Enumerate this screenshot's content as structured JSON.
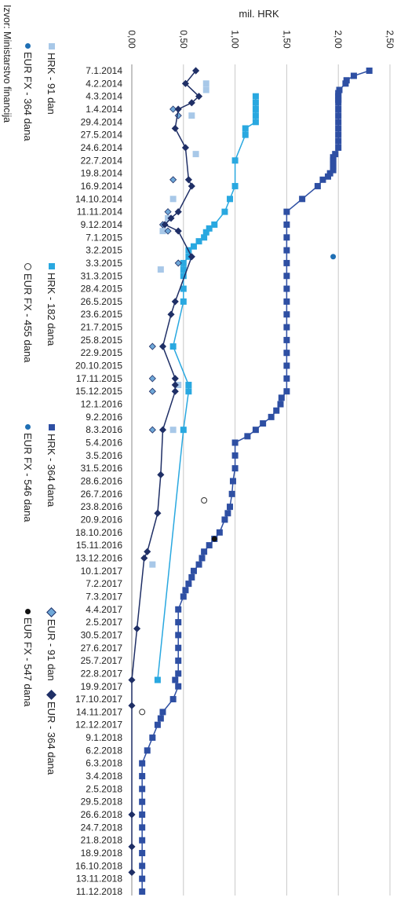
{
  "source": "Izvor: Ministarstvo financija",
  "chart_data": {
    "type": "scatter",
    "orientation": "rotated",
    "title": "",
    "ylabel": "mil. HRK",
    "ylim": [
      0,
      2.5
    ],
    "y_ticks": [
      "0,00",
      "0,50",
      "1,00",
      "1,50",
      "2,00",
      "2,50"
    ],
    "date_labels": [
      "7.1.2014",
      "4.2.2014",
      "4.3.2014",
      "1.4.2014",
      "29.4.2014",
      "27.5.2014",
      "24.6.2014",
      "22.7.2014",
      "19.8.2014",
      "16.9.2014",
      "14.10.2014",
      "11.11.2014",
      "9.12.2014",
      "7.1.2015",
      "3.2.2015",
      "3.3.2015",
      "31.3.2015",
      "28.4.2015",
      "26.5.2015",
      "23.6.2015",
      "21.7.2015",
      "25.8.2015",
      "22.9.2015",
      "20.10.2015",
      "17.11.2015",
      "15.12.2015",
      "12.1.2016",
      "9.2.2016",
      "8.3.2016",
      "5.4.2016",
      "3.5.2016",
      "31.5.2016",
      "28.6.2016",
      "26.7.2016",
      "23.8.2016",
      "20.9.2016",
      "18.10.2016",
      "15.11.2016",
      "13.12.2016",
      "10.1.2017",
      "7.2.2017",
      "7.3.2017",
      "4.4.2017",
      "2.5.2017",
      "30.5.2017",
      "27.6.2017",
      "25.7.2017",
      "22.8.2017",
      "19.9.2017",
      "17.10.2017",
      "14.11.2017",
      "12.12.2017",
      "9.1.2018",
      "6.2.2018",
      "6.3.2018",
      "3.4.2018",
      "2.5.2018",
      "29.5.2018",
      "26.6.2018",
      "24.7.2018",
      "21.8.2018",
      "18.9.2018",
      "16.10.2018",
      "13.11.2018",
      "11.12.2018"
    ],
    "legend": [
      "HRK - 91 dan",
      "EUR FX - 364 dana",
      "HRK - 182 dana",
      "EUR FX - 455 dana",
      "HRK - 364 dana",
      "EUR FX - 546 dana",
      "EUR - 91 dan",
      "EUR FX - 547 dana",
      "EUR - 364 dana"
    ],
    "series": [
      {
        "name": "HRK - 364 dana",
        "color": "#2e4fa3",
        "marker": "square",
        "line": true,
        "x": [
          0,
          0.4,
          0.75,
          1,
          1.5,
          1.75,
          2,
          2.25,
          2.5,
          3,
          3.5,
          4,
          4.5,
          5,
          5.5,
          6,
          6.5,
          6.75,
          7,
          7.25,
          7.5,
          7.75,
          8,
          8.25,
          8.5,
          9,
          10,
          11,
          12,
          13,
          14,
          15,
          16,
          17,
          18,
          19,
          20,
          21,
          22,
          23,
          24,
          25,
          25.5,
          26,
          26.5,
          27,
          27.5,
          28,
          28.5,
          29,
          30,
          31,
          32,
          33,
          34,
          34.5,
          35,
          36,
          36.5,
          37,
          37.5,
          38,
          38.5,
          39,
          39.5,
          40,
          40.5,
          41,
          42,
          43,
          44,
          45,
          46,
          47,
          47.5,
          48,
          49,
          50,
          50.5,
          51,
          52,
          53,
          54,
          55,
          56,
          57,
          58,
          59,
          60,
          61,
          62,
          63,
          64
        ],
        "y": [
          2.3,
          2.15,
          2.08,
          2.07,
          2.01,
          2.0,
          2.0,
          2.0,
          2.0,
          2.0,
          2.0,
          2.0,
          2.0,
          2.0,
          2.0,
          2.0,
          1.97,
          1.95,
          1.95,
          1.95,
          1.95,
          1.95,
          1.92,
          1.9,
          1.85,
          1.8,
          1.65,
          1.5,
          1.5,
          1.5,
          1.5,
          1.5,
          1.5,
          1.5,
          1.5,
          1.5,
          1.5,
          1.5,
          1.5,
          1.5,
          1.5,
          1.5,
          1.45,
          1.44,
          1.4,
          1.35,
          1.27,
          1.2,
          1.12,
          1.0,
          1.0,
          1.0,
          0.98,
          0.97,
          0.95,
          0.93,
          0.9,
          0.85,
          0.8,
          0.75,
          0.7,
          0.68,
          0.65,
          0.6,
          0.58,
          0.55,
          0.52,
          0.5,
          0.45,
          0.45,
          0.45,
          0.45,
          0.45,
          0.45,
          0.42,
          0.45,
          0.4,
          0.3,
          0.28,
          0.25,
          0.2,
          0.15,
          0.1,
          0.1,
          0.1,
          0.1,
          0.1,
          0.1,
          0.1,
          0.1,
          0.1,
          0.1,
          0.1
        ]
      },
      {
        "name": "HRK - 182 dana",
        "color": "#29a8e0",
        "marker": "square",
        "line": true,
        "x": [
          2,
          2.5,
          3,
          3.5,
          4,
          4.5,
          5,
          7,
          9,
          10,
          11,
          12,
          12.3,
          12.6,
          13,
          13.3,
          13.7,
          14,
          14.5,
          15,
          15.5,
          16,
          17,
          18,
          21.5,
          24.5,
          25,
          28,
          47.5
        ],
        "y": [
          1.2,
          1.2,
          1.2,
          1.2,
          1.2,
          1.1,
          1.1,
          1.0,
          1.0,
          0.95,
          0.9,
          0.8,
          0.75,
          0.72,
          0.7,
          0.65,
          0.6,
          0.55,
          0.55,
          0.5,
          0.5,
          0.5,
          0.5,
          0.5,
          0.4,
          0.55,
          0.55,
          0.5,
          0.25
        ]
      },
      {
        "name": "HRK - 91 dan",
        "color": "#a8c8e8",
        "marker": "square",
        "line": false,
        "x": [
          1,
          1.5,
          3.5,
          6.5,
          10,
          11.5,
          12.5,
          15.5,
          24.5,
          28,
          38.5
        ],
        "y": [
          0.72,
          0.72,
          0.58,
          0.62,
          0.4,
          0.35,
          0.3,
          0.28,
          0.45,
          0.4,
          0.2
        ]
      },
      {
        "name": "EUR - 91 dan",
        "color": "#6fa8d8",
        "marker": "diamond",
        "line": false,
        "x": [
          3,
          3.5,
          8.5,
          11,
          12,
          12.5,
          15,
          21.5,
          24,
          25,
          28
        ],
        "y": [
          0.4,
          0.45,
          0.4,
          0.35,
          0.3,
          0.35,
          0.45,
          0.2,
          0.2,
          0.2,
          0.2
        ]
      },
      {
        "name": "EUR - 364 dana",
        "color": "#1f2f66",
        "marker": "diamond",
        "line": true,
        "x": [
          0,
          1,
          2,
          2.5,
          3,
          4.5,
          6,
          8.5,
          9,
          11,
          11.5,
          12,
          12.5,
          14.5,
          18,
          19,
          21.5,
          24,
          24.5,
          25,
          28,
          31.5,
          34.5,
          37.5,
          38,
          43.5,
          47.5,
          49.5,
          58,
          60.5,
          62.5
        ],
        "y": [
          0.62,
          0.52,
          0.65,
          0.58,
          0.45,
          0.42,
          0.52,
          0.55,
          0.58,
          0.45,
          0.38,
          0.32,
          0.45,
          0.58,
          0.42,
          0.38,
          0.3,
          0.42,
          0.42,
          0.42,
          0.3,
          0.28,
          0.25,
          0.15,
          0.12,
          0.05,
          0.0,
          0.0,
          0.0,
          0.0,
          0.0
        ]
      },
      {
        "name": "EUR FX - 364 dana",
        "color": "#1f6fb4",
        "marker": "circle",
        "line": false,
        "x": [
          14.5
        ],
        "y": [
          1.95
        ]
      },
      {
        "name": "EUR FX - 455 dana",
        "color": "#ffffff",
        "marker": "circle-open",
        "line": false,
        "x": [
          33.5,
          50
        ],
        "y": [
          0.7,
          0.1
        ]
      },
      {
        "name": "EUR FX - 546 dana",
        "color": "#1f6fb4",
        "marker": "circle",
        "line": false,
        "x": [],
        "y": []
      },
      {
        "name": "EUR FX - 547 dana",
        "color": "#111111",
        "marker": "circle",
        "line": false,
        "x": [
          36.5
        ],
        "y": [
          0.8
        ]
      }
    ]
  }
}
